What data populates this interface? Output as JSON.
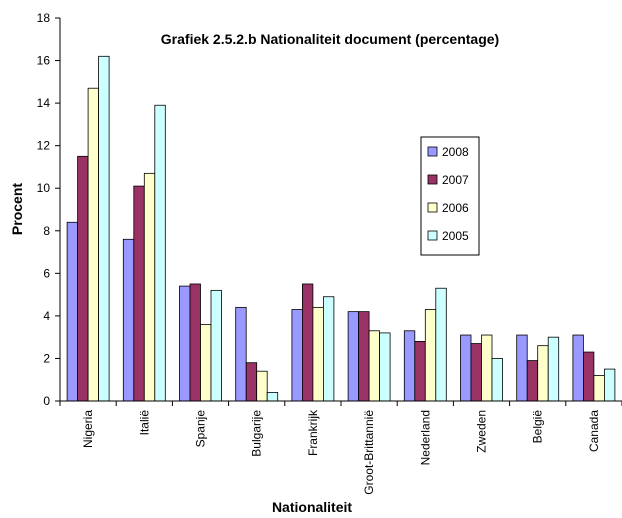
{
  "chart_data": {
    "type": "bar",
    "title": "Grafiek 2.5.2.b Nationaliteit document (percentage)",
    "xlabel": "Nationaliteit",
    "ylabel": "Procent",
    "ylim": [
      0,
      18
    ],
    "yticks": [
      0,
      2,
      4,
      6,
      8,
      10,
      12,
      14,
      16,
      18
    ],
    "grid": false,
    "legend_position": "right",
    "categories": [
      "Nigeria",
      "Italië",
      "Spanje",
      "Bulgarije",
      "Frankrijk",
      "Groot-Brittannië",
      "Nederland",
      "Zweden",
      "België",
      "Canada"
    ],
    "series": [
      {
        "name": "2008",
        "color": "#9999FF",
        "values": [
          8.4,
          7.6,
          5.4,
          4.4,
          4.3,
          4.2,
          3.3,
          3.1,
          3.1,
          3.1
        ]
      },
      {
        "name": "2007",
        "color": "#993366",
        "values": [
          11.5,
          10.1,
          5.5,
          1.8,
          5.5,
          4.2,
          2.8,
          2.7,
          1.9,
          2.3
        ]
      },
      {
        "name": "2006",
        "color": "#FFFFCC",
        "values": [
          14.7,
          10.7,
          3.6,
          1.4,
          4.4,
          3.3,
          4.3,
          3.1,
          2.6,
          1.2
        ]
      },
      {
        "name": "2005",
        "color": "#CCFFFF",
        "values": [
          16.2,
          13.9,
          5.2,
          0.4,
          4.9,
          3.2,
          5.3,
          2.0,
          3.0,
          1.5
        ]
      }
    ]
  }
}
